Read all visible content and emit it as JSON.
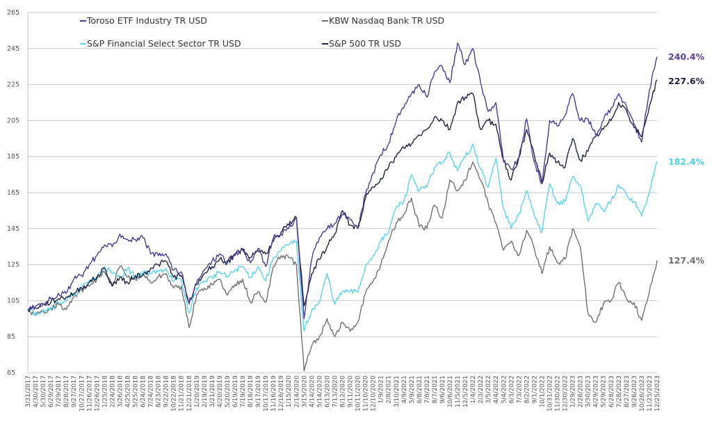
{
  "chart_data": {
    "type": "line",
    "title": "",
    "xlabel": "",
    "ylabel": "",
    "ylim": [
      65,
      265
    ],
    "yticks": [
      65,
      85,
      105,
      125,
      145,
      165,
      185,
      205,
      225,
      245,
      265
    ],
    "grid": true,
    "legend_position": "top-left",
    "categories": [
      "3/31/2017",
      "4/30/2017",
      "5/30/2017",
      "6/29/2017",
      "7/29/2017",
      "8/28/2017",
      "9/27/2017",
      "10/27/2017",
      "11/26/2017",
      "12/26/2017",
      "1/25/2018",
      "2/24/2018",
      "3/26/2018",
      "4/25/2018",
      "5/25/2018",
      "6/24/2018",
      "7/24/2018",
      "8/23/2018",
      "9/22/2018",
      "10/22/2018",
      "11/21/2018",
      "12/21/2018",
      "1/20/2019",
      "2/19/2019",
      "3/21/2019",
      "4/20/2019",
      "5/20/2019",
      "6/19/2019",
      "7/19/2019",
      "8/18/2019",
      "9/17/2019",
      "10/17/2019",
      "11/16/2019",
      "12/16/2019",
      "1/15/2020",
      "2/14/2020",
      "3/15/2020",
      "4/14/2020",
      "5/14/2020",
      "6/13/2020",
      "7/13/2020",
      "8/12/2020",
      "9/11/2020",
      "10/11/2020",
      "11/10/2020",
      "12/10/2020",
      "1/9/2021",
      "2/8/2021",
      "3/10/2021",
      "4/9/2021",
      "5/9/2021",
      "6/8/2021",
      "7/8/2021",
      "8/7/2021",
      "9/6/2021",
      "10/6/2021",
      "11/5/2021",
      "12/5/2021",
      "1/4/2022",
      "2/3/2022",
      "3/5/2022",
      "4/4/2022",
      "5/4/2022",
      "6/3/2022",
      "7/3/2022",
      "8/2/2022",
      "9/1/2022",
      "10/1/2022",
      "10/31/2022",
      "11/30/2022",
      "12/30/2022",
      "1/29/2023",
      "2/28/2023",
      "3/30/2023",
      "4/29/2023",
      "5/29/2023",
      "6/28/2023",
      "7/28/2023",
      "8/27/2023",
      "9/26/2023",
      "10/26/2023",
      "11/25/2023",
      "12/25/2023"
    ],
    "series": [
      {
        "name": "KBW Nasdaq Bank TR USD",
        "color": "#707070",
        "end_label": "127.4%",
        "values": [
          100,
          97,
          99,
          101,
          103,
          100,
          107,
          111,
          113,
          117,
          121,
          113,
          124,
          118,
          117,
          120,
          115,
          118,
          120,
          112,
          113,
          90,
          108,
          112,
          114,
          117,
          108,
          114,
          117,
          104,
          110,
          104,
          124,
          130,
          129,
          125,
          66,
          80,
          85,
          95,
          85,
          93,
          88,
          93,
          109,
          116,
          125,
          138,
          148,
          153,
          162,
          146,
          145,
          158,
          151,
          172,
          166,
          172,
          182,
          172,
          159,
          148,
          133,
          138,
          130,
          144,
          134,
          120,
          135,
          126,
          128,
          145,
          135,
          98,
          93,
          103,
          105,
          115,
          106,
          104,
          94,
          110,
          127.4
        ]
      },
      {
        "name": "S&P Financial Select Sector TR USD",
        "color": "#5ad2f0",
        "end_label": "182.4%",
        "values": [
          100,
          98,
          100,
          101,
          104,
          105,
          108,
          112,
          116,
          118,
          124,
          120,
          118,
          123,
          118,
          121,
          120,
          121,
          123,
          116,
          116,
          98,
          112,
          116,
          118,
          121,
          118,
          122,
          124,
          118,
          124,
          116,
          129,
          133,
          136,
          138,
          88,
          100,
          104,
          120,
          103,
          110,
          110,
          110,
          124,
          130,
          138,
          143,
          157,
          160,
          175,
          166,
          168,
          179,
          182,
          187,
          177,
          185,
          192,
          178,
          168,
          184,
          156,
          145,
          153,
          166,
          152,
          143,
          170,
          159,
          160,
          174,
          169,
          149,
          159,
          155,
          160,
          169,
          164,
          160,
          152,
          165,
          182.4
        ]
      },
      {
        "name": "S&P 500 TR USD",
        "color": "#1c2340",
        "end_label": "227.6%",
        "values": [
          100,
          101,
          103,
          104,
          106,
          107,
          109,
          112,
          115,
          118,
          123,
          113,
          118,
          115,
          119,
          119,
          123,
          125,
          127,
          118,
          119,
          104,
          114,
          120,
          124,
          128,
          126,
          131,
          133,
          129,
          133,
          131,
          138,
          143,
          147,
          151,
          102,
          120,
          128,
          135,
          142,
          155,
          147,
          145,
          162,
          168,
          173,
          179,
          185,
          190,
          192,
          197,
          200,
          207,
          205,
          200,
          215,
          218,
          220,
          200,
          205,
          203,
          183,
          172,
          185,
          200,
          186,
          170,
          187,
          182,
          179,
          195,
          183,
          188,
          196,
          200,
          205,
          215,
          211,
          201,
          196,
          213,
          227.6
        ]
      },
      {
        "name": "Toroso ETF Industry TR USD",
        "color": "#4b3a96",
        "end_label": "240.4%",
        "values": [
          100,
          102,
          103,
          106,
          109,
          109,
          117,
          119,
          125,
          130,
          136,
          135,
          142,
          139,
          139,
          140,
          131,
          130,
          131,
          122,
          121,
          103,
          115,
          122,
          127,
          131,
          127,
          130,
          134,
          126,
          134,
          124,
          140,
          142,
          145,
          151,
          95,
          128,
          140,
          145,
          148,
          153,
          150,
          145,
          164,
          176,
          186,
          192,
          205,
          212,
          220,
          225,
          218,
          232,
          235,
          226,
          248,
          236,
          245,
          226,
          210,
          215,
          182,
          178,
          184,
          206,
          182,
          170,
          205,
          202,
          208,
          220,
          205,
          206,
          197,
          205,
          212,
          220,
          213,
          203,
          193,
          222,
          240.4
        ]
      }
    ],
    "legend": [
      "Toroso ETF Industry TR USD",
      "KBW Nasdaq Bank TR USD",
      "S&P Financial Select Sector TR USD",
      "S&P 500 TR USD"
    ]
  }
}
